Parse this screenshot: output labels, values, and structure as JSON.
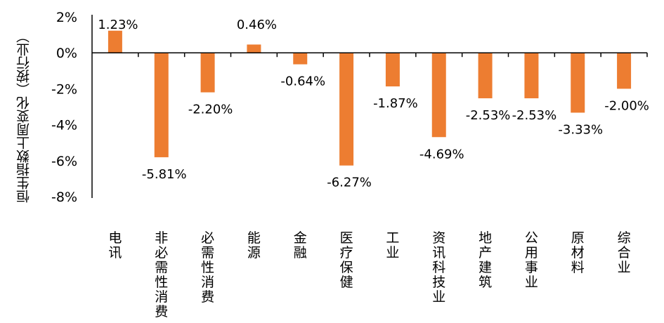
{
  "chart_data": {
    "type": "bar",
    "title": "",
    "xlabel": "",
    "ylabel": "恒生指数上周变化（按行业）",
    "ylim": [
      -8,
      2
    ],
    "yticks": [
      "2%",
      "0%",
      "-2%",
      "-4%",
      "-6%",
      "-8%"
    ],
    "grid": false,
    "legend": null,
    "bar_color": "#ED7D31",
    "categories": [
      "电讯",
      "非必需性消费",
      "必需性消费",
      "能源",
      "金融",
      "医疗保健",
      "工业",
      "资讯科技业",
      "地产建筑",
      "公用事业",
      "原材料",
      "综合业"
    ],
    "values": [
      1.23,
      -5.81,
      -2.2,
      0.46,
      -0.64,
      -6.27,
      -1.87,
      -4.69,
      -2.53,
      -2.53,
      -3.33,
      -2.0
    ],
    "data_labels": [
      "1.23%",
      "-5.81%",
      "-2.20%",
      "0.46%",
      "-0.64%",
      "-6.27%",
      "-1.87%",
      "-4.69%",
      "-2.53%",
      "-2.53%",
      "-3.33%",
      "-2.00%"
    ]
  }
}
